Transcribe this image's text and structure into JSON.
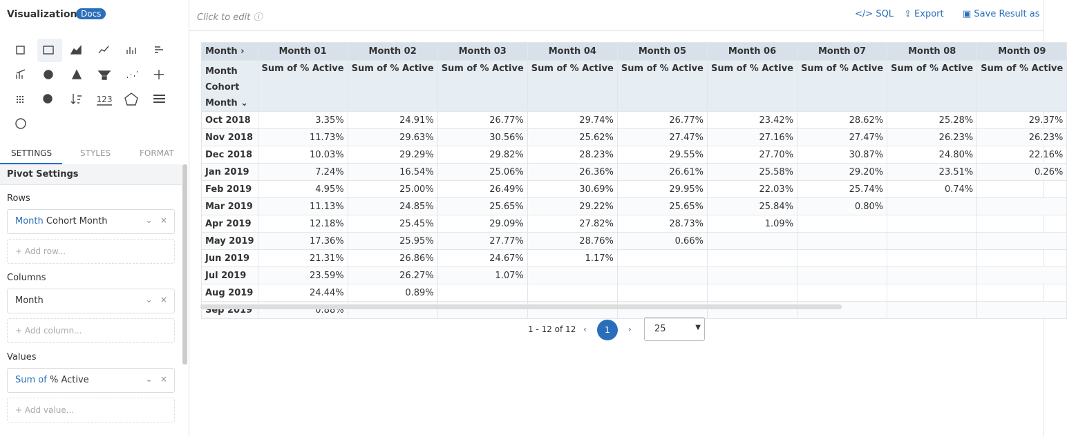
{
  "sidebar": {
    "title": "Visualizations",
    "docs": "Docs",
    "number_icon": "123",
    "tabs": [
      "SETTINGS",
      "STYLES",
      "FORMAT"
    ],
    "section": "Pivot Settings",
    "rows_label": "Rows",
    "row_field": {
      "prefix": "Month",
      "name": "Cohort Month"
    },
    "add_row": "+ Add row...",
    "columns_label": "Columns",
    "column_field": "Month",
    "add_column": "+ Add column...",
    "values_label": "Values",
    "value_field": {
      "prefix": "Sum of",
      "name": "% Active"
    },
    "add_value": "+ Add value..."
  },
  "toolbar": {
    "edit_hint": "Click to edit",
    "actions": [
      "SQL",
      "Export",
      "Save Result as"
    ]
  },
  "table": {
    "column_dimension": "Month",
    "row_dimension": "Month Cohort Month",
    "measure": "Sum of % Active",
    "columns": [
      "Month 01",
      "Month 02",
      "Month 03",
      "Month 04",
      "Month 05",
      "Month 06",
      "Month 07",
      "Month 08",
      "Month 09"
    ],
    "rows": [
      {
        "label": "Oct 2018",
        "cells": [
          "3.35%",
          "24.91%",
          "26.77%",
          "29.74%",
          "26.77%",
          "23.42%",
          "28.62%",
          "25.28%",
          "29.37%"
        ]
      },
      {
        "label": "Nov 2018",
        "cells": [
          "11.73%",
          "29.63%",
          "30.56%",
          "25.62%",
          "27.47%",
          "27.16%",
          "27.47%",
          "26.23%",
          "26.23%"
        ]
      },
      {
        "label": "Dec 2018",
        "cells": [
          "10.03%",
          "29.29%",
          "29.82%",
          "28.23%",
          "29.55%",
          "27.70%",
          "30.87%",
          "24.80%",
          "22.16%"
        ]
      },
      {
        "label": "Jan 2019",
        "cells": [
          "7.24%",
          "16.54%",
          "25.06%",
          "26.36%",
          "26.61%",
          "25.58%",
          "29.20%",
          "23.51%",
          "0.26%"
        ]
      },
      {
        "label": "Feb 2019",
        "cells": [
          "4.95%",
          "25.00%",
          "26.49%",
          "30.69%",
          "29.95%",
          "22.03%",
          "25.74%",
          "0.74%",
          null
        ]
      },
      {
        "label": "Mar 2019",
        "cells": [
          "11.13%",
          "24.85%",
          "25.65%",
          "29.22%",
          "25.65%",
          "25.84%",
          "0.80%",
          null,
          null
        ]
      },
      {
        "label": "Apr 2019",
        "cells": [
          "12.18%",
          "25.45%",
          "29.09%",
          "27.82%",
          "28.73%",
          "1.09%",
          null,
          null,
          null
        ]
      },
      {
        "label": "May 2019",
        "cells": [
          "17.36%",
          "25.95%",
          "27.77%",
          "28.76%",
          "0.66%",
          null,
          null,
          null,
          null
        ]
      },
      {
        "label": "Jun 2019",
        "cells": [
          "21.31%",
          "26.86%",
          "24.67%",
          "1.17%",
          null,
          null,
          null,
          null,
          null
        ]
      },
      {
        "label": "Jul 2019",
        "cells": [
          "23.59%",
          "26.27%",
          "1.07%",
          null,
          null,
          null,
          null,
          null,
          null
        ]
      },
      {
        "label": "Aug 2019",
        "cells": [
          "24.44%",
          "0.89%",
          null,
          null,
          null,
          null,
          null,
          null,
          null
        ]
      },
      {
        "label": "Sep 2019",
        "cells": [
          "0.88%",
          null,
          null,
          null,
          null,
          null,
          null,
          null,
          null
        ]
      }
    ]
  },
  "pagination": {
    "range": "1 - 12 of 12",
    "page": "1",
    "page_size": "25"
  }
}
